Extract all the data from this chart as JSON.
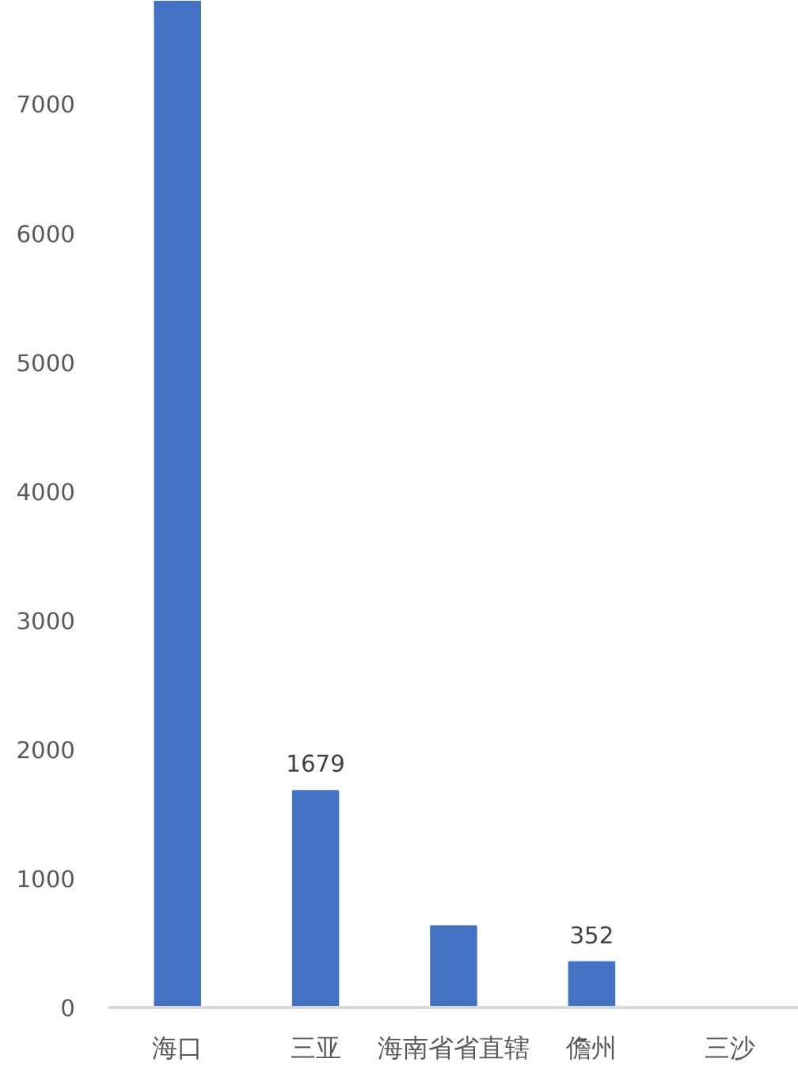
{
  "chart_data": {
    "type": "bar",
    "categories": [
      "海口",
      "三亚",
      "海南省省直辖",
      "儋州",
      "三沙"
    ],
    "values": [
      7800,
      1679,
      630,
      352,
      0
    ],
    "value_labels": [
      null,
      "1679",
      null,
      "352",
      null
    ],
    "color": "#4472c4",
    "ylim": [
      0,
      7800
    ],
    "yticks": [
      0,
      1000,
      2000,
      3000,
      4000,
      5000,
      6000,
      7000
    ],
    "grid": false
  }
}
